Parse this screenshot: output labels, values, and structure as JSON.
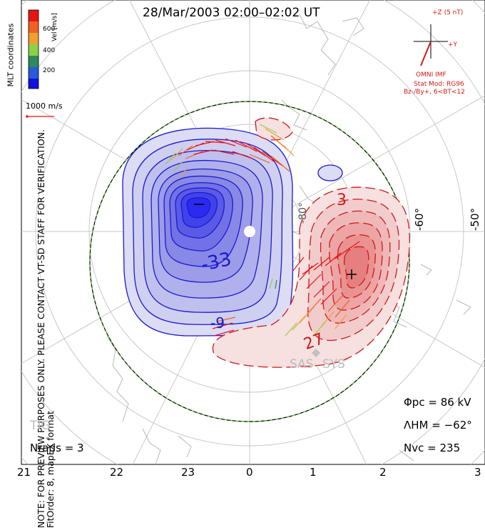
{
  "header": {
    "title": "28/Mar/2003 02:00–02:02 UT",
    "coords_label": "MLT coordinates"
  },
  "legend": {
    "unit_label": "Vel [m/s]",
    "ticks": [
      "600",
      "400",
      "200"
    ],
    "colors": [
      "#e81414",
      "#f06020",
      "#f0a030",
      "#8cd248",
      "#2e8a5a",
      "#2a5ad8",
      "#1010e0"
    ],
    "scale_label": "1000 m/s"
  },
  "imf": {
    "z_label": "+Z (5 nT)",
    "y_label": "+Y",
    "source_label": "OMNI IMF",
    "model_line1": "Stat Mod: RG96",
    "model_line2": "Bz-/By+, 6<BT<12"
  },
  "contour_labels": {
    "neg_center": "-33",
    "neg_low": "-9",
    "pos_center": "27",
    "pos_upper": "3"
  },
  "latitude_labels": [
    "-50°",
    "-60°",
    "-80°"
  ],
  "station_labels": [
    "SAS",
    "SYS",
    "TIG"
  ],
  "stats": {
    "phi_pc_label": "Φpc",
    "phi_pc_value": "= 86 kV",
    "lambda_hm_label": "ΛHM",
    "lambda_hm_value": "= −62°",
    "n_vc_label": "Nvc",
    "n_vc_value": "= 235",
    "n_rads_label": "Nrads",
    "n_rads_value": "= 3"
  },
  "notes": {
    "line1": "NOTE: FOR PREVIEW PURPOSES ONLY. PLEASE CONTACT VT-SD STAFF FOR VERIFICATION.",
    "line2": "FitOrder: 8, mapEX format"
  },
  "mlt_ticks": [
    "21",
    "22",
    "23",
    "0",
    "1",
    "2",
    "3"
  ],
  "colors": {
    "negative": "#1a1ad0",
    "positive": "#d01818",
    "grid": "#c8c8c8",
    "coastline": "#b8b8b8"
  }
}
